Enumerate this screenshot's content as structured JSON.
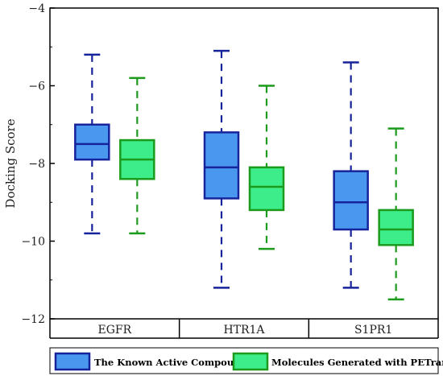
{
  "chart_data": {
    "type": "box",
    "ylabel": "Docking Score",
    "xlabel": "",
    "ylim": [
      -12,
      -4
    ],
    "yticks": [
      -4,
      -6,
      -8,
      -10,
      -12
    ],
    "categories": [
      "EGFR",
      "HTR1A",
      "S1PR1"
    ],
    "grid": false,
    "legend_position": "bottom",
    "series": [
      {
        "name": "The Known Active Compounds",
        "fill": "#4a97f0",
        "stroke": "#16239a",
        "boxes": [
          {
            "category": "EGFR",
            "whisker_low": -9.8,
            "q1": -7.9,
            "median": -7.5,
            "q3": -7.0,
            "whisker_high": -5.2
          },
          {
            "category": "HTR1A",
            "whisker_low": -11.2,
            "q1": -8.9,
            "median": -8.1,
            "q3": -7.2,
            "whisker_high": -5.1
          },
          {
            "category": "S1PR1",
            "whisker_low": -11.2,
            "q1": -9.7,
            "median": -9.0,
            "q3": -8.2,
            "whisker_high": -5.4
          }
        ]
      },
      {
        "name": "Molecules Generated with PETrans",
        "fill": "#3ded8a",
        "stroke": "#1b9a1b",
        "boxes": [
          {
            "category": "EGFR",
            "whisker_low": -9.8,
            "q1": -8.4,
            "median": -7.9,
            "q3": -7.4,
            "whisker_high": -5.8
          },
          {
            "category": "HTR1A",
            "whisker_low": -10.2,
            "q1": -9.2,
            "median": -8.6,
            "q3": -8.1,
            "whisker_high": -6.0
          },
          {
            "category": "S1PR1",
            "whisker_low": -11.5,
            "q1": -10.1,
            "median": -9.7,
            "q3": -9.2,
            "whisker_high": -7.1
          }
        ]
      }
    ]
  }
}
